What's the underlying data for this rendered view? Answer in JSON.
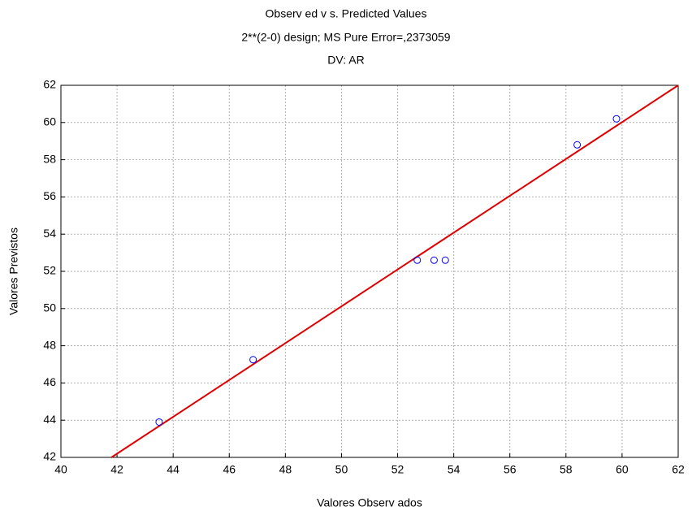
{
  "chart_data": {
    "type": "scatter",
    "title": "Observ ed v s. Predicted Values",
    "subtitle": "2**(2-0) design; MS Pure Error=,2373059",
    "annotation": "DV: AR",
    "x_label": "Valores Observ ados",
    "y_label": "Valores Previstos",
    "x": [
      43.5,
      46.85,
      52.7,
      53.3,
      53.7,
      58.4,
      59.8
    ],
    "y": [
      43.9,
      47.25,
      52.6,
      52.6,
      52.6,
      58.8,
      60.2
    ],
    "color": "#0000ff",
    "fit_line": {
      "x": [
        41.8,
        62
      ],
      "y": [
        42,
        62
      ],
      "color": "#e00000"
    },
    "xlim": [
      40,
      62
    ],
    "ylim": [
      42,
      62
    ],
    "xticks": [
      40,
      42,
      44,
      46,
      48,
      50,
      52,
      54,
      56,
      58,
      60,
      62
    ],
    "yticks": [
      42,
      44,
      46,
      48,
      50,
      52,
      54,
      56,
      58,
      60,
      62
    ],
    "grid": true
  }
}
